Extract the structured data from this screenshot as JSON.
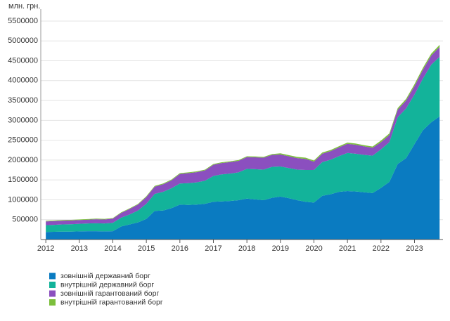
{
  "chart_data": {
    "type": "stacked-area",
    "y_unit_label": "млн. грн.",
    "x": [
      2012,
      2012.25,
      2012.5,
      2012.75,
      2013,
      2013.25,
      2013.5,
      2013.75,
      2014,
      2014.25,
      2014.5,
      2014.75,
      2015,
      2015.25,
      2015.5,
      2015.75,
      2016,
      2016.25,
      2016.5,
      2016.75,
      2017,
      2017.25,
      2017.5,
      2017.75,
      2018,
      2018.25,
      2018.5,
      2018.75,
      2019,
      2019.25,
      2019.5,
      2019.75,
      2020,
      2020.25,
      2020.5,
      2020.75,
      2021,
      2021.25,
      2021.5,
      2021.75,
      2022,
      2022.25,
      2022.5,
      2022.75,
      2023,
      2023.25,
      2023.5,
      2023.75
    ],
    "series": [
      {
        "name": "зовнішній державний борг",
        "color": "#0a7bc1",
        "values": [
          190000,
          195000,
          200000,
          200000,
          205000,
          210000,
          210000,
          205000,
          210000,
          330000,
          380000,
          430000,
          520000,
          720000,
          730000,
          790000,
          880000,
          870000,
          880000,
          900000,
          950000,
          960000,
          970000,
          990000,
          1030000,
          1010000,
          990000,
          1050000,
          1080000,
          1040000,
          990000,
          950000,
          930000,
          1100000,
          1140000,
          1200000,
          1220000,
          1210000,
          1190000,
          1170000,
          1300000,
          1450000,
          1900000,
          2050000,
          2400000,
          2750000,
          2950000,
          3100000
        ]
      },
      {
        "name": "внутрішній державний борг",
        "color": "#13b39a",
        "values": [
          170000,
          175000,
          180000,
          185000,
          190000,
          195000,
          200000,
          200000,
          210000,
          220000,
          250000,
          300000,
          380000,
          430000,
          470000,
          500000,
          530000,
          550000,
          560000,
          580000,
          650000,
          680000,
          690000,
          700000,
          750000,
          760000,
          770000,
          780000,
          760000,
          760000,
          770000,
          800000,
          820000,
          850000,
          870000,
          900000,
          960000,
          950000,
          940000,
          940000,
          970000,
          1000000,
          1180000,
          1250000,
          1250000,
          1300000,
          1450000,
          1500000
        ]
      },
      {
        "name": "зовнішній гарантований борг",
        "color": "#8b4fbf",
        "values": [
          95000,
          95000,
          95000,
          95000,
          95000,
          95000,
          100000,
          100000,
          105000,
          120000,
          140000,
          150000,
          170000,
          180000,
          190000,
          200000,
          240000,
          250000,
          255000,
          260000,
          280000,
          285000,
          290000,
          290000,
          295000,
          300000,
          300000,
          300000,
          300000,
          295000,
          290000,
          280000,
          210000,
          210000,
          215000,
          220000,
          230000,
          225000,
          215000,
          200000,
          180000,
          180000,
          190000,
          200000,
          210000,
          220000,
          230000,
          250000
        ]
      },
      {
        "name": "внутрішній гарантований борг",
        "color": "#7cbf3c",
        "values": [
          15000,
          15000,
          15000,
          15000,
          15000,
          15000,
          15000,
          15000,
          15000,
          15000,
          15000,
          15000,
          20000,
          20000,
          20000,
          20000,
          20000,
          20000,
          20000,
          20000,
          20000,
          20000,
          20000,
          20000,
          20000,
          20000,
          20000,
          20000,
          30000,
          30000,
          30000,
          30000,
          30000,
          30000,
          30000,
          30000,
          30000,
          30000,
          30000,
          30000,
          40000,
          40000,
          40000,
          40000,
          50000,
          50000,
          50000,
          50000
        ]
      }
    ],
    "xlim": [
      2011.85,
      2023.85
    ],
    "xticks": [
      2012,
      2013,
      2014,
      2015,
      2016,
      2017,
      2018,
      2019,
      2020,
      2021,
      2022,
      2023
    ],
    "ylim": [
      0,
      5800000
    ],
    "yticks": [
      500000,
      1000000,
      1500000,
      2000000,
      2500000,
      3000000,
      3500000,
      4000000,
      4500000,
      5000000,
      5500000
    ],
    "grid": true
  }
}
